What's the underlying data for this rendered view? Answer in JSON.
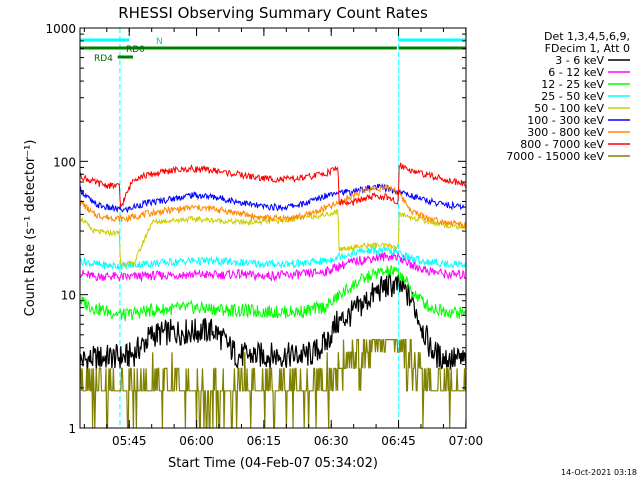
{
  "chart_data": {
    "type": "line",
    "title": "RHESSI Observing Summary Count Rates",
    "xlabel": "Start Time (04-Feb-07 05:34:02)",
    "ylabel": "Count Rate (s⁻¹ detector⁻¹)",
    "y_scale": "log",
    "ylim": [
      1,
      1000
    ],
    "xlim_minutes_after_start": [
      0,
      86
    ],
    "x_ticks": [
      {
        "label": "05:45",
        "minute": 10.97
      },
      {
        "label": "06:00",
        "minute": 25.97
      },
      {
        "label": "06:15",
        "minute": 40.97
      },
      {
        "label": "06:30",
        "minute": 55.97
      },
      {
        "label": "06:45",
        "minute": 70.97
      },
      {
        "label": "07:00",
        "minute": 85.97
      }
    ],
    "y_ticks": [
      {
        "label": "1",
        "value": 1
      },
      {
        "label": "10",
        "value": 10
      },
      {
        "label": "100",
        "value": 100
      },
      {
        "label": "1000",
        "value": 1000
      }
    ],
    "legend": {
      "header_line1": "Det 1,3,4,5,6,9,",
      "header_line2": "FDecim 1, Att 0",
      "placement": "right"
    },
    "footer": "14-Oct-2021 03:18",
    "flags": [
      {
        "label": "N",
        "color": "#00ffff",
        "segments": [
          [
            0,
            11.0
          ],
          [
            71.0,
            86
          ]
        ]
      },
      {
        "label": "RD0",
        "color": "#008000",
        "segments": [
          [
            0,
            57.6
          ],
          [
            57.6,
            70.6
          ],
          [
            71.0,
            86
          ]
        ]
      },
      {
        "label": "RD4",
        "color": "#008000",
        "segments": [
          [
            8.4,
            11.8
          ]
        ]
      }
    ],
    "flag_lines": [
      0.0,
      8.9,
      71.0,
      86.0
    ],
    "series": [
      {
        "name": "3 - 6 keV",
        "color": "#000000",
        "x": [
          0,
          3,
          6,
          10,
          12,
          16,
          20,
          25,
          30,
          35,
          40,
          45,
          50,
          52,
          55,
          57,
          60,
          63,
          66,
          68,
          70,
          72,
          74,
          76,
          78,
          80,
          83,
          86
        ],
        "y": [
          3.2,
          3.3,
          3.4,
          3.4,
          3.6,
          5.0,
          5.2,
          5.3,
          5.4,
          3.5,
          3.5,
          3.5,
          3.5,
          3.6,
          4.4,
          6.0,
          7.0,
          8.5,
          10.5,
          11.5,
          11.8,
          11.0,
          9.0,
          6.0,
          4.0,
          3.4,
          3.3,
          3.2
        ]
      },
      {
        "name": "6 - 12 keV",
        "color": "#ff00ff",
        "x": [
          0,
          3,
          6,
          10,
          14,
          20,
          25,
          30,
          35,
          40,
          45,
          50,
          55,
          58,
          62,
          66,
          70,
          72,
          74,
          78,
          82,
          86
        ],
        "y": [
          14.5,
          13.6,
          13.8,
          13.5,
          13.8,
          14.0,
          14.2,
          14.0,
          14.3,
          13.8,
          14.0,
          14.2,
          15.0,
          16.5,
          18.0,
          19.0,
          19.5,
          18.5,
          16.5,
          15.0,
          14.2,
          14.0
        ]
      },
      {
        "name": "12 - 25 keV",
        "color": "#00ff00",
        "x": [
          0,
          3,
          6,
          10,
          14,
          20,
          25,
          30,
          35,
          40,
          45,
          50,
          55,
          58,
          62,
          66,
          70,
          72,
          74,
          78,
          82,
          86
        ],
        "y": [
          9.0,
          8.0,
          7.5,
          7.0,
          7.5,
          7.8,
          8.0,
          7.8,
          7.6,
          7.5,
          7.4,
          7.5,
          8.2,
          10.0,
          12.5,
          14.5,
          15.0,
          13.5,
          10.5,
          8.0,
          7.5,
          7.2
        ]
      },
      {
        "name": "25 - 50 keV",
        "color": "#00ffff",
        "x": [
          0,
          3,
          6,
          10,
          14,
          20,
          25,
          30,
          35,
          40,
          45,
          50,
          55,
          58,
          62,
          66,
          70,
          72,
          74,
          78,
          82,
          86
        ],
        "y": [
          18.0,
          17.0,
          16.5,
          16.5,
          17.0,
          17.5,
          18.0,
          17.8,
          17.5,
          17.0,
          17.0,
          17.2,
          18.0,
          19.5,
          21.0,
          21.5,
          21.0,
          20.0,
          18.5,
          17.5,
          17.0,
          17.0
        ]
      },
      {
        "name": "50 - 100 keV",
        "color": "#cccc00",
        "x": [
          0,
          3,
          6,
          8.8,
          9.0,
          12,
          16,
          20,
          25,
          30,
          35,
          40,
          45,
          50,
          55,
          57.5,
          57.7,
          62,
          66,
          70,
          70.9,
          71.1,
          74,
          78,
          82,
          86
        ],
        "y": [
          38.0,
          30.0,
          29.0,
          29.0,
          17.0,
          17.0,
          35.0,
          36.0,
          37.0,
          36.0,
          35.0,
          35.0,
          36.0,
          38.0,
          40.0,
          42.0,
          22.0,
          23.0,
          23.5,
          23.0,
          22.5,
          40.0,
          38.0,
          35.0,
          33.0,
          32.0
        ]
      },
      {
        "name": "100 - 300 keV",
        "color": "#0000ff",
        "x": [
          0,
          3,
          6,
          10,
          14,
          20,
          25,
          30,
          35,
          40,
          45,
          50,
          55,
          57.5,
          60,
          63,
          66,
          68,
          70,
          72,
          74,
          78,
          82,
          86
        ],
        "y": [
          62.0,
          48.0,
          45.0,
          43.0,
          48.0,
          52.0,
          56.0,
          54.0,
          50.0,
          46.0,
          45.0,
          48.0,
          56.0,
          60.0,
          58.0,
          62.0,
          64.0,
          63.0,
          60.0,
          58.0,
          55.0,
          50.0,
          47.0,
          45.0
        ]
      },
      {
        "name": "300 - 800 keV",
        "color": "#ff8800",
        "x": [
          0,
          3,
          6,
          10,
          14,
          20,
          25,
          30,
          35,
          40,
          45,
          50,
          55,
          57.5,
          60,
          63,
          66,
          68,
          70,
          72,
          74,
          78,
          82,
          86
        ],
        "y": [
          50.0,
          40.0,
          38.0,
          37.0,
          40.0,
          43.0,
          45.0,
          44.0,
          41.0,
          38.0,
          37.0,
          39.0,
          45.0,
          48.0,
          54.0,
          60.0,
          63.0,
          63.0,
          62.0,
          52.0,
          42.0,
          37.0,
          35.0,
          33.0
        ]
      },
      {
        "name": "800 - 7000 keV",
        "color": "#ff0000",
        "x": [
          0,
          3,
          6,
          8.8,
          9.0,
          12,
          16,
          20,
          25,
          30,
          35,
          40,
          45,
          50,
          55,
          57.5,
          57.7,
          60,
          63,
          66,
          68,
          70,
          70.9,
          71.1,
          74,
          78,
          82,
          86
        ],
        "y": [
          78.0,
          70.0,
          66.0,
          65.0,
          45.0,
          75.0,
          80.0,
          85.0,
          88.0,
          85.0,
          80.0,
          75.0,
          73.0,
          75.0,
          82.0,
          90.0,
          50.0,
          48.0,
          52.0,
          55.0,
          54.0,
          50.0,
          48.0,
          95.0,
          85.0,
          78.0,
          72.0,
          68.0
        ]
      },
      {
        "name": "7000 - 15000 keV",
        "color": "#808000",
        "x": [
          0,
          3,
          6,
          10,
          14,
          20,
          25,
          30,
          35,
          40,
          45,
          50,
          55,
          60,
          63,
          66,
          68,
          70,
          72,
          74,
          76,
          80,
          84,
          86
        ],
        "y": [
          2.0,
          1.6,
          1.7,
          1.8,
          2.0,
          2.0,
          1.7,
          1.6,
          1.8,
          2.0,
          1.8,
          1.9,
          2.0,
          3.0,
          3.6,
          4.5,
          4.8,
          4.6,
          4.0,
          3.2,
          2.4,
          1.9,
          1.8,
          1.9
        ]
      }
    ]
  }
}
